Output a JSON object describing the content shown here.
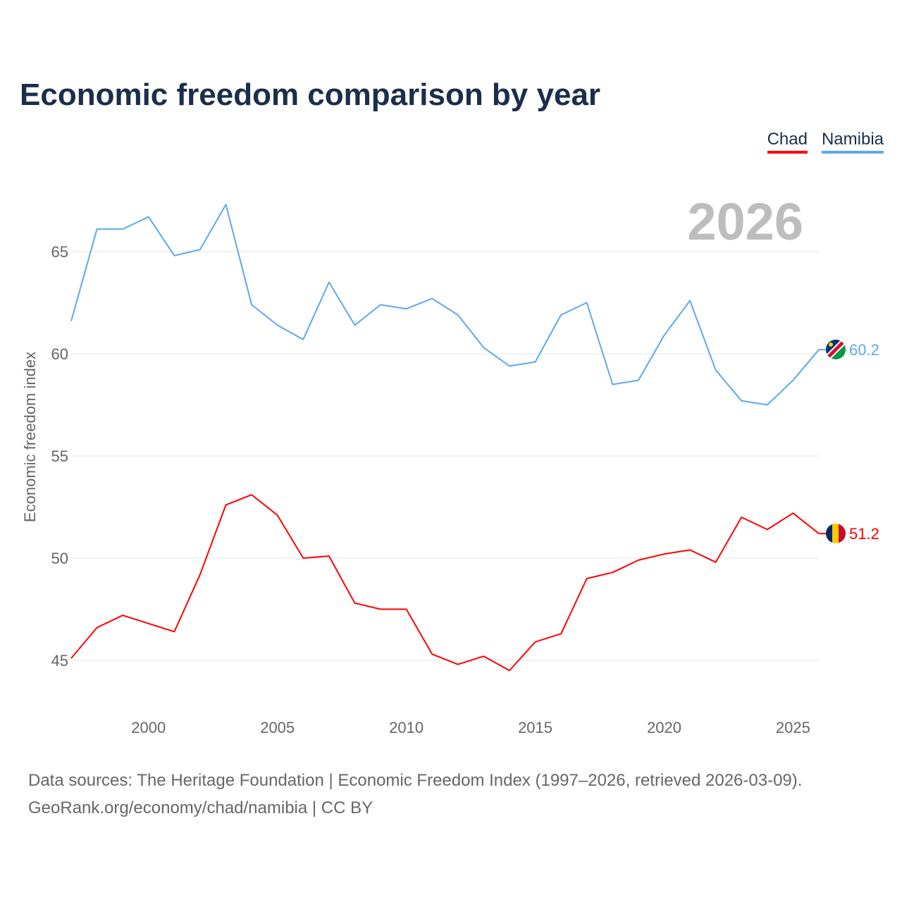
{
  "title": "Economic freedom comparison by year",
  "legend": [
    {
      "label": "Chad",
      "color": "#ff0000"
    },
    {
      "label": "Namibia",
      "color": "#5ea8ec"
    }
  ],
  "footer": {
    "line1": "Data sources: The Heritage Foundation | Economic Freedom Index (1997–2026, retrieved 2026-03-09).",
    "line2": "GeoRank.org/economy/chad/namibia | CC BY"
  },
  "chart_data": {
    "type": "line",
    "title": "Economic freedom comparison by year",
    "year_label": "2026",
    "xlabel": "",
    "ylabel": "Economic freedom index",
    "xlim": [
      1997,
      2026
    ],
    "ylim": [
      42.3,
      69
    ],
    "xticks": [
      2000,
      2005,
      2010,
      2015,
      2020,
      2025
    ],
    "yticks": [
      45,
      50,
      55,
      60,
      65
    ],
    "grid": true,
    "legend_position": "top-right",
    "x": [
      1997,
      1998,
      1999,
      2000,
      2001,
      2002,
      2003,
      2004,
      2005,
      2006,
      2007,
      2008,
      2009,
      2010,
      2011,
      2012,
      2013,
      2014,
      2015,
      2016,
      2017,
      2018,
      2019,
      2020,
      2021,
      2022,
      2023,
      2024,
      2025,
      2026
    ],
    "series": [
      {
        "name": "Chad",
        "color": "#ff0000",
        "end_label": "51.2",
        "values": [
          45.1,
          46.6,
          47.2,
          46.8,
          46.4,
          49.2,
          52.6,
          53.1,
          52.1,
          50.0,
          50.1,
          47.8,
          47.5,
          47.5,
          45.3,
          44.8,
          45.2,
          44.5,
          45.9,
          46.3,
          49.0,
          49.3,
          49.9,
          50.2,
          50.4,
          49.8,
          52.0,
          51.4,
          52.2,
          51.2
        ]
      },
      {
        "name": "Namibia",
        "color": "#5ea8ec",
        "end_label": "60.2",
        "values": [
          61.6,
          66.1,
          66.1,
          66.7,
          64.8,
          65.1,
          67.3,
          62.4,
          61.4,
          60.7,
          63.5,
          61.4,
          62.4,
          62.2,
          62.7,
          61.9,
          60.3,
          59.4,
          59.6,
          61.9,
          62.5,
          58.5,
          58.7,
          60.9,
          62.6,
          59.2,
          57.7,
          57.5,
          58.7,
          60.2
        ]
      }
    ]
  }
}
